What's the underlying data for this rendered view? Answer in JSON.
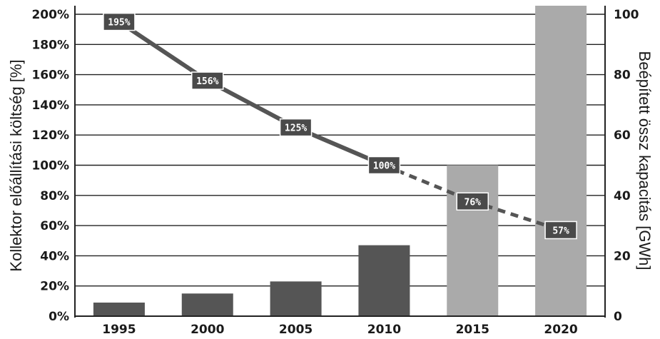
{
  "chart_data": {
    "type": "bar",
    "title": "",
    "categories": [
      "1995",
      "2000",
      "2005",
      "2010",
      "2015",
      "2020"
    ],
    "y_left": {
      "label": "Kollektor előállítási költség [%]",
      "ticks": [
        "0%",
        "20%",
        "40%",
        "60%",
        "80%",
        "100%",
        "120%",
        "140%",
        "160%",
        "180%",
        "200%"
      ],
      "lim": [
        0,
        200
      ]
    },
    "y_right": {
      "label": "Beépített össz kapacitás [GWh]",
      "ticks": [
        "0",
        "20",
        "40",
        "60",
        "80",
        "100"
      ],
      "lim": [
        0,
        100
      ]
    },
    "grid": true,
    "series": [
      {
        "type": "bar",
        "axis": "right",
        "values": [
          4.5,
          7.5,
          11.5,
          23.5,
          50,
          103
        ],
        "colors": [
          "#555555",
          "#555555",
          "#555555",
          "#555555",
          "#aaaaaa",
          "#aaaaaa"
        ]
      },
      {
        "type": "line",
        "axis": "left",
        "values": [
          195,
          156,
          125,
          100,
          76,
          57
        ],
        "labels": [
          "195%",
          "156%",
          "125%",
          "100%",
          "76%",
          "57%"
        ],
        "dashed_from_index": 3,
        "color": "#555555"
      }
    ]
  }
}
